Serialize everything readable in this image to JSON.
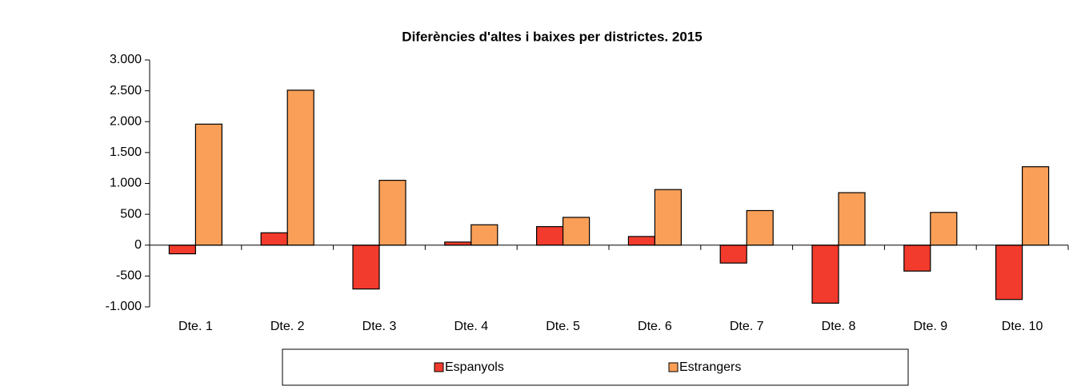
{
  "chart_data": {
    "type": "bar",
    "title": "Diferències d'altes i baixes per districtes. 2015",
    "categories": [
      "Dte. 1",
      "Dte. 2",
      "Dte. 3",
      "Dte. 4",
      "Dte. 5",
      "Dte. 6",
      "Dte. 7",
      "Dte. 8",
      "Dte. 9",
      "Dte. 10"
    ],
    "series": [
      {
        "name": "Espanyols",
        "color": "#f23b2c",
        "values": [
          -140,
          200,
          -710,
          50,
          300,
          140,
          -290,
          -940,
          -420,
          -880
        ]
      },
      {
        "name": "Estrangers",
        "color": "#fa9f58",
        "values": [
          1960,
          2510,
          1050,
          330,
          450,
          900,
          560,
          850,
          530,
          1270
        ]
      }
    ],
    "ylim": [
      -1000,
      3000
    ],
    "yticks": [
      {
        "value": -1000,
        "label": "-1.000"
      },
      -500,
      0,
      500,
      {
        "value": 1000,
        "label": "1.000"
      },
      {
        "value": 1500,
        "label": "1.500"
      },
      {
        "value": 2000,
        "label": "2.000"
      },
      {
        "value": 2500,
        "label": "2.500"
      },
      {
        "value": 3000,
        "label": "3.000"
      }
    ],
    "legend": "bottom"
  }
}
